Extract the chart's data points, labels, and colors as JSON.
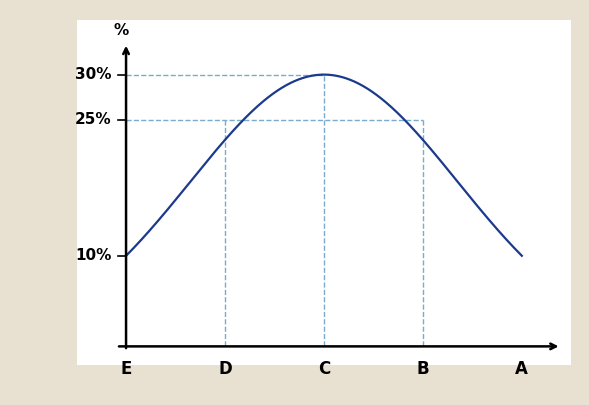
{
  "background_color": "#e8e0d0",
  "plot_bg_color": "#ffffff",
  "curve_color": "#1c3a8c",
  "dashed_color": "#7aaacc",
  "x_labels": [
    "E",
    "D",
    "C",
    "B",
    "A"
  ],
  "y_label": "%",
  "y_ticks": [
    10,
    25,
    30
  ],
  "y_tick_labels": [
    "10%",
    "25%",
    "30%"
  ],
  "dashed_lw": 1.0,
  "curve_lw": 1.6,
  "axis_lw": 1.8
}
